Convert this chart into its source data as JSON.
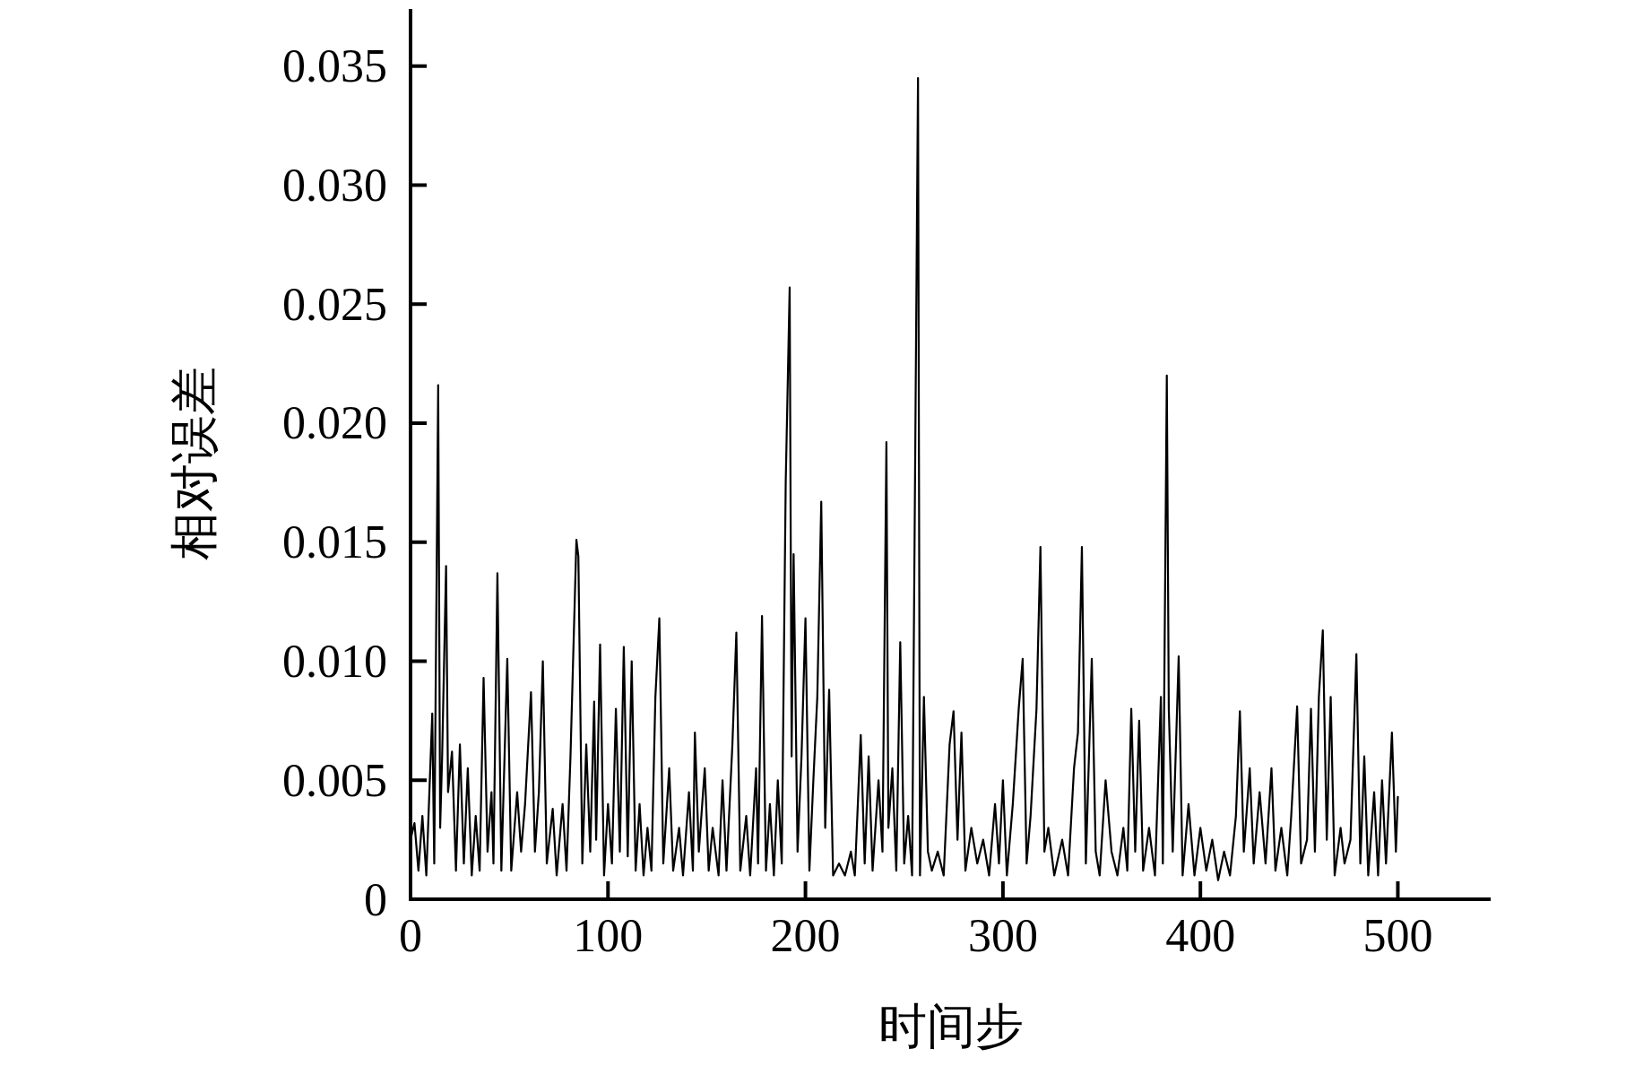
{
  "chart_data": {
    "type": "line",
    "xlabel": "时间步",
    "ylabel": "相对误差",
    "x": [
      0,
      2,
      4,
      6,
      8,
      11,
      12,
      14,
      15,
      16,
      18,
      19,
      21,
      23,
      25,
      27,
      29,
      31,
      33,
      35,
      37,
      39,
      41,
      42,
      44,
      46,
      49,
      51,
      54,
      56,
      58,
      61,
      63,
      65,
      67,
      69,
      72,
      74,
      77,
      79,
      81,
      84,
      85,
      87,
      89,
      91,
      93,
      94,
      96,
      98,
      100,
      102,
      104,
      106,
      108,
      110,
      112,
      114,
      116,
      118,
      120,
      122,
      124,
      126,
      128,
      131,
      133,
      136,
      138,
      141,
      143,
      144,
      146,
      149,
      151,
      153,
      156,
      158,
      160,
      163,
      165,
      167,
      170,
      172,
      175,
      176,
      178,
      180,
      182,
      184,
      186,
      188,
      190,
      192,
      193,
      194,
      196,
      198,
      200,
      202,
      204,
      206,
      208,
      210,
      212,
      214,
      217,
      220,
      223,
      225,
      228,
      230,
      232,
      234,
      237,
      239,
      241,
      242,
      244,
      246,
      248,
      250,
      252,
      254,
      257,
      258,
      260,
      262,
      264,
      267,
      270,
      273,
      275,
      277,
      279,
      281,
      284,
      287,
      290,
      293,
      296,
      298,
      300,
      302,
      305,
      308,
      310,
      312,
      314,
      317,
      319,
      321,
      323,
      326,
      330,
      333,
      336,
      338,
      340,
      342,
      345,
      347,
      349,
      352,
      355,
      358,
      361,
      363,
      365,
      367,
      369,
      371,
      374,
      377,
      380,
      381,
      383,
      384,
      386,
      389,
      391,
      394,
      397,
      400,
      403,
      406,
      409,
      412,
      415,
      418,
      420,
      422,
      425,
      427,
      430,
      433,
      436,
      438,
      441,
      444,
      446,
      449,
      451,
      454,
      456,
      458,
      460,
      462,
      464,
      466,
      468,
      471,
      473,
      476,
      479,
      481,
      483,
      485,
      488,
      490,
      492,
      494,
      497,
      499,
      500
    ],
    "series": [
      {
        "color": "#000000",
        "values": [
          0.0025,
          0.0032,
          0.0012,
          0.0035,
          0.001,
          0.0078,
          0.0015,
          0.0216,
          0.003,
          0.006,
          0.014,
          0.0045,
          0.0062,
          0.0012,
          0.0065,
          0.0015,
          0.0055,
          0.001,
          0.0035,
          0.0012,
          0.0093,
          0.002,
          0.0045,
          0.0015,
          0.0137,
          0.0012,
          0.0101,
          0.0012,
          0.0045,
          0.002,
          0.004,
          0.0087,
          0.002,
          0.0045,
          0.01,
          0.0015,
          0.0038,
          0.001,
          0.004,
          0.0012,
          0.006,
          0.0151,
          0.0144,
          0.0015,
          0.0065,
          0.002,
          0.0083,
          0.0025,
          0.0107,
          0.001,
          0.004,
          0.0015,
          0.008,
          0.002,
          0.0106,
          0.0018,
          0.01,
          0.0012,
          0.004,
          0.001,
          0.003,
          0.0012,
          0.0085,
          0.0118,
          0.0015,
          0.0055,
          0.0012,
          0.003,
          0.001,
          0.0045,
          0.0012,
          0.007,
          0.002,
          0.0055,
          0.0012,
          0.003,
          0.001,
          0.005,
          0.0012,
          0.0065,
          0.0112,
          0.0012,
          0.0035,
          0.001,
          0.0055,
          0.0015,
          0.0119,
          0.0012,
          0.004,
          0.001,
          0.005,
          0.0015,
          0.0175,
          0.0257,
          0.006,
          0.0145,
          0.002,
          0.006,
          0.0118,
          0.0012,
          0.005,
          0.0085,
          0.0167,
          0.003,
          0.0088,
          0.001,
          0.0015,
          0.001,
          0.002,
          0.001,
          0.0069,
          0.0015,
          0.006,
          0.0012,
          0.005,
          0.002,
          0.0192,
          0.003,
          0.0055,
          0.0012,
          0.0108,
          0.0015,
          0.0035,
          0.001,
          0.0345,
          0.001,
          0.0085,
          0.002,
          0.0012,
          0.002,
          0.001,
          0.0065,
          0.0079,
          0.0025,
          0.007,
          0.0012,
          0.003,
          0.0015,
          0.0025,
          0.001,
          0.004,
          0.0015,
          0.005,
          0.001,
          0.004,
          0.008,
          0.0101,
          0.0015,
          0.0035,
          0.008,
          0.0148,
          0.002,
          0.003,
          0.001,
          0.0025,
          0.001,
          0.0055,
          0.007,
          0.0148,
          0.0015,
          0.0101,
          0.002,
          0.001,
          0.005,
          0.002,
          0.001,
          0.003,
          0.0012,
          0.008,
          0.002,
          0.0075,
          0.0012,
          0.003,
          0.001,
          0.0085,
          0.0015,
          0.022,
          0.008,
          0.002,
          0.0102,
          0.001,
          0.004,
          0.001,
          0.003,
          0.0012,
          0.0025,
          0.0008,
          0.002,
          0.001,
          0.0035,
          0.0079,
          0.002,
          0.0055,
          0.0015,
          0.0045,
          0.0015,
          0.0055,
          0.0012,
          0.003,
          0.001,
          0.0035,
          0.0081,
          0.0015,
          0.0025,
          0.008,
          0.002,
          0.0085,
          0.0113,
          0.0025,
          0.0085,
          0.001,
          0.003,
          0.0015,
          0.0025,
          0.0103,
          0.0015,
          0.006,
          0.001,
          0.0045,
          0.001,
          0.005,
          0.0015,
          0.007,
          0.002,
          0.0043
        ]
      }
    ],
    "xlim": [
      0,
      547
    ],
    "xticks": [
      0,
      100,
      200,
      300,
      400,
      500
    ],
    "ylim": [
      0,
      0.0374
    ],
    "yticks": [
      0,
      {
        "value": 0.005,
        "label": "0.005"
      },
      {
        "value": 0.01,
        "label": "0.010"
      },
      {
        "value": 0.015,
        "label": "0.015"
      },
      {
        "value": 0.02,
        "label": "0.020"
      },
      {
        "value": 0.025,
        "label": "0.025"
      },
      {
        "value": 0.03,
        "label": "0.030"
      },
      {
        "value": 0.035,
        "label": "0.035"
      }
    ],
    "grid": false,
    "marker": "none",
    "line_style": "solid"
  }
}
